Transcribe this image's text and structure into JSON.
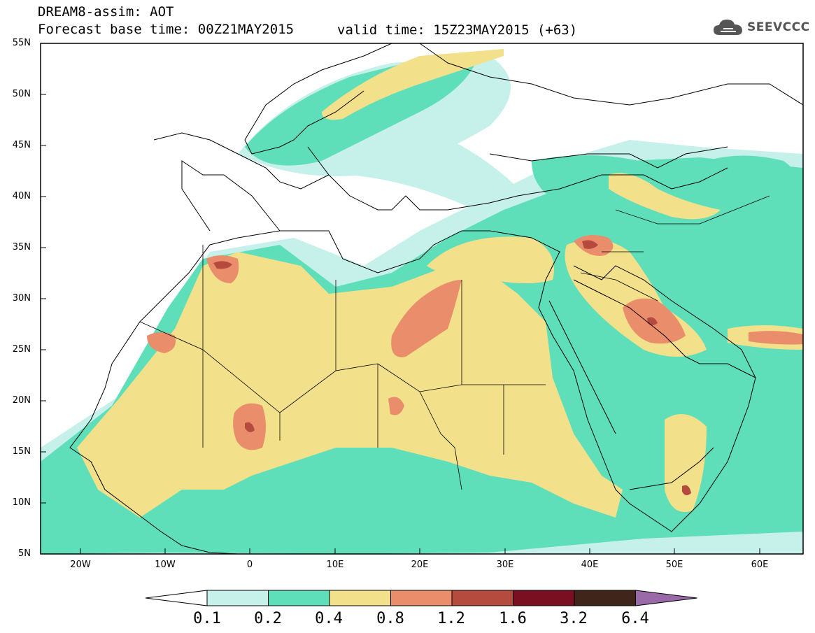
{
  "header": {
    "title": "DREAM8-assim: AOT",
    "base_time": "Forecast base time: 00Z21MAY2015",
    "valid_time": "valid time: 15Z23MAY2015 (+63)"
  },
  "logo": {
    "text": "SEEVCCC",
    "icon": "cloud-icon"
  },
  "map": {
    "lat_labels": [
      "55N",
      "50N",
      "45N",
      "40N",
      "35N",
      "30N",
      "25N",
      "20N",
      "15N",
      "10N",
      "5N"
    ],
    "lon_labels": [
      "20W",
      "10W",
      "0",
      "10E",
      "20E",
      "30E",
      "40E",
      "50E",
      "60E"
    ],
    "extent": {
      "lon": [
        -25,
        65
      ],
      "lat": [
        5,
        55
      ]
    }
  },
  "colorbar": {
    "labels": [
      "0.1",
      "0.2",
      "0.4",
      "0.8",
      "1.2",
      "1.6",
      "3.2",
      "6.4"
    ],
    "colors": [
      "#ffffff",
      "#c6f0ea",
      "#5fdfb9",
      "#f3e08a",
      "#e98d6b",
      "#b54a3e",
      "#7a0f22",
      "#40261a",
      "#9a6aa8"
    ]
  }
}
